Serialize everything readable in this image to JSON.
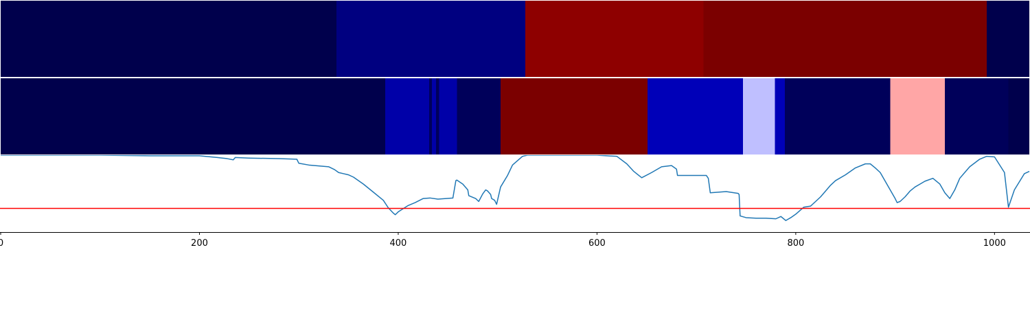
{
  "chart_data": [
    {
      "type": "heatmap",
      "xlim": [
        0,
        1035
      ],
      "segments": [
        {
          "start": 0,
          "end": 338,
          "color": "#00004c"
        },
        {
          "start": 338,
          "end": 528,
          "color": "#000080"
        },
        {
          "start": 528,
          "end": 707,
          "color": "#8e0000"
        },
        {
          "start": 707,
          "end": 992,
          "color": "#7b0000"
        },
        {
          "start": 992,
          "end": 1035,
          "color": "#00004c"
        }
      ]
    },
    {
      "type": "heatmap",
      "xlim": [
        0,
        1035
      ],
      "segments": [
        {
          "start": 0,
          "end": 387,
          "color": "#00004c"
        },
        {
          "start": 387,
          "end": 431,
          "color": "#0000a8"
        },
        {
          "start": 431,
          "end": 434,
          "color": "#00005a"
        },
        {
          "start": 434,
          "end": 438,
          "color": "#0000a8"
        },
        {
          "start": 438,
          "end": 441,
          "color": "#00005a"
        },
        {
          "start": 441,
          "end": 459,
          "color": "#0000a8"
        },
        {
          "start": 459,
          "end": 503,
          "color": "#00005a"
        },
        {
          "start": 503,
          "end": 651,
          "color": "#7b0000"
        },
        {
          "start": 651,
          "end": 747,
          "color": "#0000b8"
        },
        {
          "start": 747,
          "end": 779,
          "color": "#bfbfff"
        },
        {
          "start": 779,
          "end": 789,
          "color": "#0000b8"
        },
        {
          "start": 789,
          "end": 895,
          "color": "#00005a"
        },
        {
          "start": 895,
          "end": 950,
          "color": "#ffa6a6"
        },
        {
          "start": 950,
          "end": 1014,
          "color": "#00005a"
        },
        {
          "start": 1014,
          "end": 1035,
          "color": "#00004c"
        }
      ]
    },
    {
      "type": "line",
      "xlim": [
        0,
        1035
      ],
      "ylim": [
        -0.33,
        1.0
      ],
      "xticks": [
        "0",
        "200",
        "400",
        "600",
        "800",
        "1000"
      ],
      "line_color": "#1f77b4",
      "threshold": 0.08,
      "threshold_color": "#ff0000",
      "x": [
        0,
        100,
        150,
        200,
        218,
        228,
        234,
        236,
        250,
        280,
        298,
        300,
        310,
        330,
        336,
        340,
        345,
        350,
        355,
        365,
        375,
        385,
        390,
        395,
        397,
        400,
        410,
        417,
        425,
        432,
        440,
        455,
        458,
        459,
        465,
        470,
        471,
        478,
        481,
        485,
        488,
        490,
        493,
        494,
        497,
        499,
        503,
        510,
        515,
        525,
        530,
        560,
        600,
        620,
        630,
        637,
        645,
        655,
        665,
        675,
        680,
        681,
        695,
        710,
        712,
        714,
        730,
        742,
        743,
        744,
        750,
        760,
        770,
        780,
        785,
        790,
        795,
        800,
        808,
        815,
        820,
        825,
        830,
        835,
        840,
        850,
        860,
        870,
        875,
        880,
        885,
        890,
        895,
        900,
        902,
        905,
        910,
        915,
        920,
        925,
        930,
        938,
        945,
        950,
        955,
        960,
        965,
        975,
        985,
        992,
        1000,
        1010,
        1014,
        1020,
        1030,
        1035
      ],
      "y": [
        1.0,
        1.0,
        0.99,
        0.99,
        0.96,
        0.94,
        0.92,
        0.96,
        0.95,
        0.94,
        0.93,
        0.86,
        0.83,
        0.8,
        0.75,
        0.7,
        0.68,
        0.66,
        0.62,
        0.5,
        0.36,
        0.22,
        0.09,
        0.0,
        -0.03,
        0.02,
        0.13,
        0.18,
        0.25,
        0.26,
        0.24,
        0.26,
        0.56,
        0.57,
        0.5,
        0.4,
        0.3,
        0.25,
        0.2,
        0.33,
        0.4,
        0.38,
        0.32,
        0.25,
        0.22,
        0.15,
        0.45,
        0.65,
        0.83,
        0.98,
        1.0,
        1.0,
        1.0,
        0.98,
        0.85,
        0.72,
        0.61,
        0.7,
        0.8,
        0.82,
        0.76,
        0.65,
        0.65,
        0.65,
        0.6,
        0.35,
        0.37,
        0.34,
        0.32,
        -0.05,
        -0.08,
        -0.09,
        -0.09,
        -0.1,
        -0.06,
        -0.13,
        -0.08,
        -0.02,
        0.1,
        0.12,
        0.2,
        0.28,
        0.38,
        0.48,
        0.56,
        0.66,
        0.78,
        0.85,
        0.85,
        0.78,
        0.7,
        0.55,
        0.4,
        0.25,
        0.18,
        0.2,
        0.28,
        0.38,
        0.45,
        0.5,
        0.55,
        0.6,
        0.5,
        0.35,
        0.25,
        0.4,
        0.6,
        0.8,
        0.93,
        0.98,
        0.97,
        0.7,
        0.1,
        0.4,
        0.68,
        0.72
      ]
    }
  ]
}
